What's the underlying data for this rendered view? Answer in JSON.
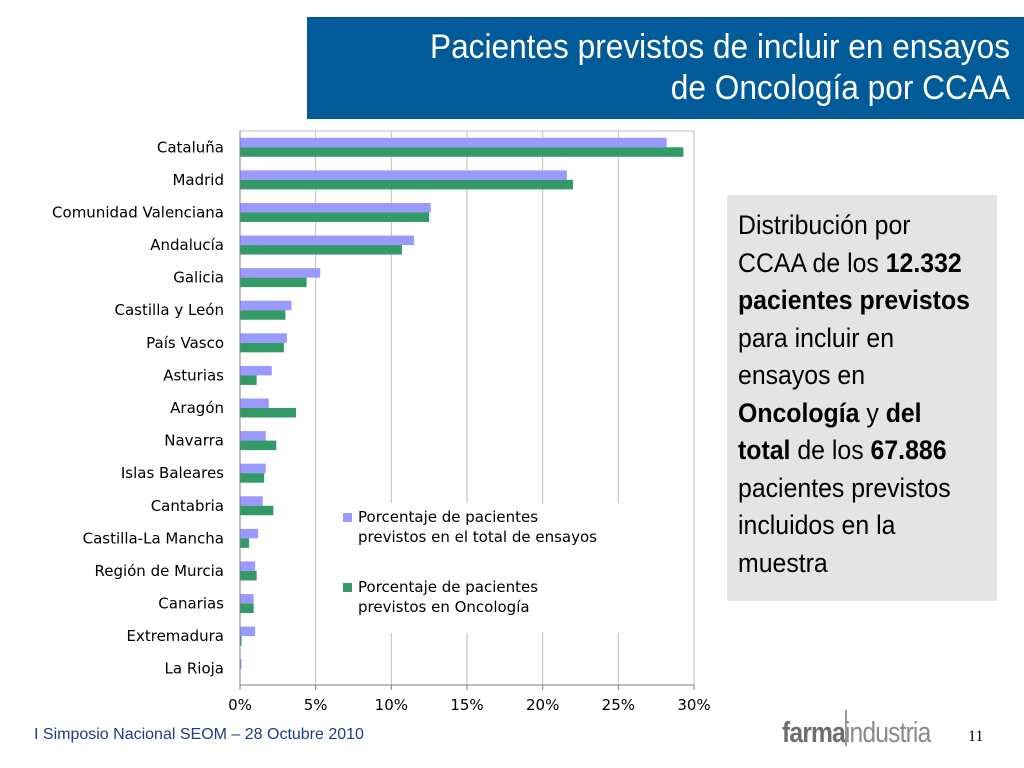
{
  "slide": {
    "title_line1": "Pacientes previstos de incluir en ensayos",
    "title_line2": "de Oncología por CCAA",
    "footer": "I Simposio Nacional SEOM – 28 Octubre 2010",
    "logo_part1": "farma",
    "logo_part2": "industria",
    "page_number": "11"
  },
  "side_note": {
    "t1": "Distribución por CCAA de los ",
    "b1": "12.332 pacientes previstos",
    "t2": " para incluir en ensayos en ",
    "b2": "Oncología",
    "t3": " y ",
    "b3": "del total",
    "t4": " de los ",
    "b4": "67.886",
    "t5": " pacientes previstos incluidos en la muestra"
  },
  "colors": {
    "title_bg": "#005B98",
    "series_total": "#9999FF",
    "series_onco": "#339966",
    "side_bg": "#E4E4E4"
  },
  "chart_data": {
    "type": "bar",
    "orientation": "horizontal",
    "categories": [
      "Cataluña",
      "Madrid",
      "Comunidad Valenciana",
      "Andalucía",
      "Galicia",
      "Castilla y León",
      "País Vasco",
      "Asturias",
      "Aragón",
      "Navarra",
      "Islas Baleares",
      "Cantabria",
      "Castilla-La Mancha",
      "Región de Murcia",
      "Canarias",
      "Extremadura",
      "La Rioja"
    ],
    "series": [
      {
        "name": "Porcentaje de pacientes previstos en el total de ensayos",
        "values": [
          28.2,
          21.6,
          12.6,
          11.5,
          5.3,
          3.4,
          3.1,
          2.1,
          1.9,
          1.7,
          1.7,
          1.5,
          1.2,
          1.0,
          0.9,
          1.0,
          0.1
        ]
      },
      {
        "name": "Porcentaje de pacientes previstos en Oncología",
        "values": [
          29.3,
          22.0,
          12.5,
          10.7,
          4.4,
          3.0,
          2.9,
          1.1,
          3.7,
          2.4,
          1.6,
          2.2,
          0.6,
          1.1,
          0.9,
          0.1,
          0.0
        ]
      }
    ],
    "xlim": [
      0,
      30
    ],
    "xticks": [
      "0%",
      "5%",
      "10%",
      "15%",
      "20%",
      "25%",
      "30%"
    ],
    "grid": true,
    "legend": "inside-lower-right"
  }
}
